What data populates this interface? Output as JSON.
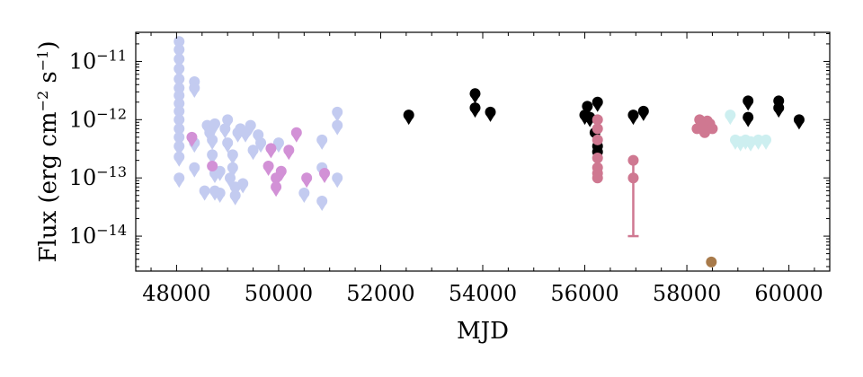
{
  "chart_data": {
    "type": "scatter",
    "xlabel": "MJD",
    "ylabel": "Flux (erg cm^-2 s^-1)",
    "ylabel_parts": {
      "pre": "Flux (erg cm",
      "exp1": "−2",
      "mid": " s",
      "exp2": "−1",
      "post": ")"
    },
    "y_scale": "log",
    "xlim": [
      47200,
      60800
    ],
    "ylim_log10": [
      -14.6,
      -10.5
    ],
    "x_ticks": [
      48000,
      50000,
      52000,
      54000,
      56000,
      58000,
      60000
    ],
    "x_tick_labels": [
      "48000",
      "50000",
      "52000",
      "54000",
      "56000",
      "58000",
      "60000"
    ],
    "y_ticks_log10": [
      -14,
      -13,
      -12,
      -11
    ],
    "y_tick_labels": [
      {
        "base": "10",
        "exp": "−14"
      },
      {
        "base": "10",
        "exp": "−13"
      },
      {
        "base": "10",
        "exp": "−12"
      },
      {
        "base": "10",
        "exp": "−11"
      }
    ],
    "colors": {
      "lavender": "#c3cbf0",
      "orchid": "#d291d6",
      "black": "#000000",
      "rose": "#cf7891",
      "cyan": "#cdeff0",
      "brown": "#a87a4a"
    },
    "series": [
      {
        "color_key": "lavender",
        "points": [
          [
            48050,
            2.2e-11,
            1
          ],
          [
            48050,
            1.6e-11,
            1
          ],
          [
            48050,
            1.1e-11,
            1
          ],
          [
            48050,
            7.5e-12,
            1
          ],
          [
            48050,
            5e-12,
            1
          ],
          [
            48050,
            3.5e-12,
            1
          ],
          [
            48050,
            2.6e-12,
            1
          ],
          [
            48050,
            1.9e-12,
            1
          ],
          [
            48050,
            1.4e-12,
            1
          ],
          [
            48050,
            1e-12,
            1
          ],
          [
            48050,
            7e-13,
            1
          ],
          [
            48050,
            5e-13,
            1
          ],
          [
            48050,
            3.5e-13,
            1
          ],
          [
            48050,
            2.3e-13,
            1
          ],
          [
            48050,
            1e-13,
            1
          ],
          [
            48350,
            4.5e-12,
            1
          ],
          [
            48350,
            3.5e-12,
            1
          ],
          [
            48350,
            4e-13,
            1
          ],
          [
            48350,
            1.5e-13,
            1
          ],
          [
            48550,
            6e-14,
            1
          ],
          [
            48600,
            8e-13,
            1
          ],
          [
            48650,
            6e-13,
            1
          ],
          [
            48700,
            4.5e-13,
            1
          ],
          [
            48700,
            2.5e-13,
            1
          ],
          [
            48750,
            8.5e-13,
            1
          ],
          [
            48750,
            1.2e-13,
            1
          ],
          [
            48750,
            6e-14,
            1
          ],
          [
            48850,
            1.3e-13,
            1
          ],
          [
            48850,
            5.5e-14,
            1
          ],
          [
            48950,
            7e-13,
            1
          ],
          [
            49000,
            1e-12,
            1
          ],
          [
            49000,
            4e-13,
            1
          ],
          [
            49050,
            1e-13,
            1
          ],
          [
            49100,
            2.5e-13,
            1
          ],
          [
            49100,
            1.5e-13,
            1
          ],
          [
            49150,
            7e-14,
            1
          ],
          [
            49150,
            5e-14,
            1
          ],
          [
            49200,
            6e-13,
            1
          ],
          [
            49250,
            7e-13,
            1
          ],
          [
            49300,
            8e-14,
            1
          ],
          [
            49350,
            6e-13,
            1
          ],
          [
            49450,
            8e-13,
            1
          ],
          [
            49500,
            3e-13,
            1
          ],
          [
            49600,
            5.5e-13,
            1
          ],
          [
            49650,
            4e-13,
            1
          ],
          [
            50000,
            4e-13,
            1
          ],
          [
            50500,
            5.5e-14,
            1
          ],
          [
            50850,
            4.5e-13,
            1
          ],
          [
            50850,
            1.5e-13,
            1
          ],
          [
            50850,
            4e-14,
            1
          ],
          [
            51150,
            1.35e-12,
            1
          ],
          [
            51150,
            8e-13,
            1
          ],
          [
            51150,
            1e-13,
            1
          ]
        ]
      },
      {
        "color_key": "orchid",
        "points": [
          [
            48300,
            5e-13,
            1
          ],
          [
            48700,
            1.6e-13,
            0
          ],
          [
            49800,
            1.6e-13,
            1
          ],
          [
            49850,
            3.2e-13,
            1
          ],
          [
            49950,
            1e-13,
            1
          ],
          [
            49950,
            7e-14,
            1
          ],
          [
            50050,
            1.3e-13,
            1
          ],
          [
            50200,
            3e-13,
            1
          ],
          [
            50350,
            6e-13,
            1
          ],
          [
            50550,
            1e-13,
            1
          ],
          [
            50900,
            1.2e-13,
            1
          ]
        ]
      },
      {
        "color_key": "black",
        "points": [
          [
            52550,
            1.2e-12,
            1
          ],
          [
            53850,
            2.8e-12,
            1
          ],
          [
            53850,
            1.6e-12,
            1
          ],
          [
            54150,
            1.35e-12,
            1
          ],
          [
            56000,
            1.2e-12,
            1
          ],
          [
            56050,
            1.7e-12,
            1
          ],
          [
            56100,
            1.1e-12,
            1
          ],
          [
            56250,
            2e-12,
            1
          ],
          [
            56200,
            6e-13,
            0
          ],
          [
            56250,
            3.5e-13,
            0
          ],
          [
            56250,
            2.8e-13,
            0
          ],
          [
            56950,
            1.2e-12,
            1
          ],
          [
            57150,
            1.4e-12,
            1
          ],
          [
            59200,
            2.1e-12,
            1
          ],
          [
            59200,
            1.1e-12,
            1
          ],
          [
            59800,
            2.1e-12,
            1
          ],
          [
            59800,
            1.6e-12,
            1
          ],
          [
            60200,
            1e-12,
            1
          ]
        ]
      },
      {
        "color_key": "rose",
        "points": [
          [
            56250,
            1e-12,
            0
          ],
          [
            56250,
            7e-13,
            0
          ],
          [
            56250,
            4.5e-13,
            0
          ],
          [
            56250,
            2.2e-13,
            0
          ],
          [
            56250,
            1.5e-13,
            0
          ],
          [
            56250,
            1.2e-13,
            0
          ],
          [
            56250,
            1e-13,
            0
          ],
          [
            56950,
            2e-13,
            0
          ],
          [
            56950,
            1e-13,
            0
          ],
          [
            58200,
            7e-13,
            0
          ],
          [
            58250,
            1e-12,
            0
          ],
          [
            58300,
            8e-13,
            0
          ],
          [
            58350,
            6e-13,
            0
          ],
          [
            58400,
            9.5e-13,
            0
          ],
          [
            58450,
            8.5e-13,
            0
          ],
          [
            58500,
            7e-13,
            0
          ]
        ],
        "error_bars": [
          [
            56950,
            2e-13,
            1e-14
          ]
        ]
      },
      {
        "color_key": "cyan",
        "points": [
          [
            58850,
            1.2e-12,
            1
          ],
          [
            58950,
            4.5e-13,
            1
          ],
          [
            59050,
            4.2e-13,
            1
          ],
          [
            59150,
            4.5e-13,
            1
          ],
          [
            59250,
            4.2e-13,
            1
          ],
          [
            59400,
            4.5e-13,
            1
          ],
          [
            59550,
            4.5e-13,
            1
          ]
        ]
      },
      {
        "color_key": "brown",
        "points": [
          [
            58480,
            3.6e-15,
            0
          ]
        ]
      }
    ]
  }
}
